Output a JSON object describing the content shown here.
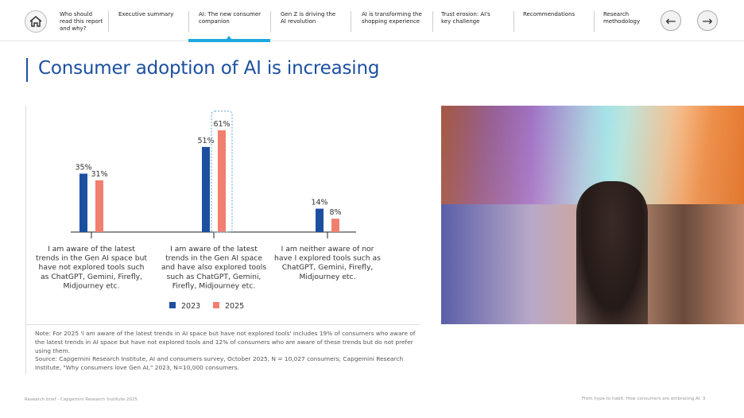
{
  "nav": {
    "items": [
      {
        "label": "Who should read this report and why?"
      },
      {
        "label": "Executive summary"
      },
      {
        "label": "AI: The new consumer companion",
        "active": true
      },
      {
        "label": "Gen Z is driving the AI revolution"
      },
      {
        "label": "AI is transforming the shopping experience"
      },
      {
        "label": "Trust erosion: AI's key challenge"
      },
      {
        "label": "Recommendations"
      },
      {
        "label": "Research methodology"
      }
    ],
    "active_color": "#1ea8e0",
    "prev_icon": "←",
    "next_icon": "→"
  },
  "page_title": "Consumer adoption of AI is increasing",
  "chart_data": {
    "type": "bar",
    "categories": [
      "I am aware of the latest trends in the Gen AI space but have not explored tools such as ChatGPT, Gemini, Firefly, Midjourney etc.",
      "I am aware of the latest trends in the Gen AI space and have also explored tools such as ChatGPT, Gemini, Firefly, Midjourney etc.",
      "I am neither aware of nor have I explored tools such as ChatGPT, Gemini, Firefly, Midjourney etc."
    ],
    "category_lines": [
      [
        "I am aware of the latest",
        "trends in the Gen AI space but",
        "have not explored tools such",
        "as ChatGPT, Gemini, Firefly,",
        "Midjourney etc."
      ],
      [
        "I am aware of the latest",
        "trends in the Gen AI space",
        "and have also explored tools",
        "such as ChatGPT, Gemini,",
        "Firefly, Midjourney etc."
      ],
      [
        "I am neither aware of nor",
        "have I explored tools such as",
        "ChatGPT, Gemini, Firefly,",
        "Midjourney etc."
      ]
    ],
    "series": [
      {
        "name": "2023",
        "values": [
          35,
          51,
          14
        ],
        "color": "#1c4fa0"
      },
      {
        "name": "2025",
        "values": [
          31,
          61,
          8
        ],
        "color": "#f07f6f"
      }
    ],
    "unit": "%",
    "highlight": {
      "series": "2025",
      "category_index": 1
    },
    "legend_position": "bottom",
    "ylim": [
      0,
      65
    ],
    "grid": false
  },
  "note": "Note: For 2025 'I am aware of the latest trends in AI space but have not explored tools' includes 19% of consumers who aware of the latest trends in AI space but have not explored tools and 12% of consumers who are aware of these trends but do not prefer using them.",
  "source": "Source: Capgemini Research Institute, AI and consumers survey, October 2025, N = 10,027 consumers; Capgemini Research Institute, \"Why consumers love Gen AI,\" 2023, N=10,000 consumers.",
  "footer": {
    "left": "Research brief - Capgemini Research Institute 2025",
    "right": "From hype to habit: How consumers are embracing AI",
    "page": "3"
  }
}
